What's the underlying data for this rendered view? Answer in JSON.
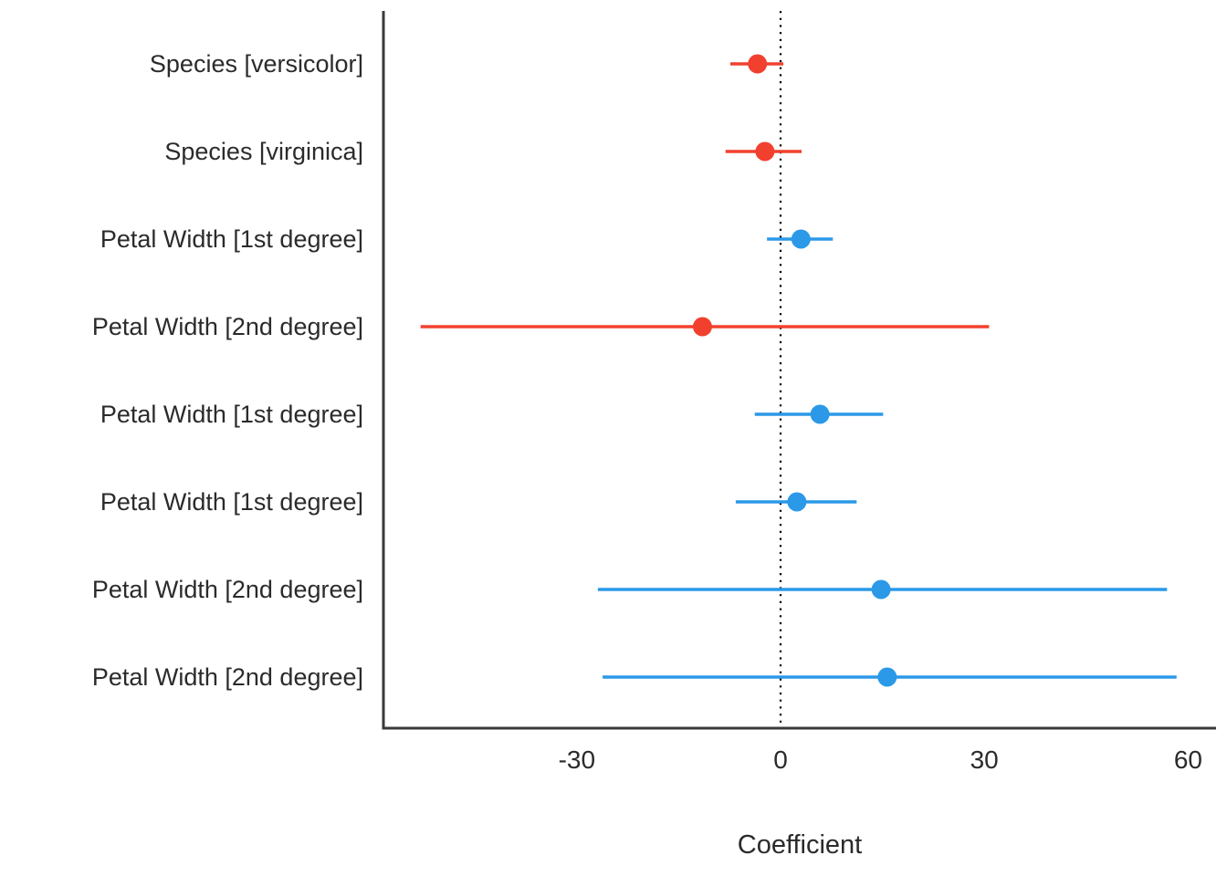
{
  "chart_data": {
    "type": "scatter",
    "subtype": "forest_coefficient_plot",
    "title": "",
    "xlabel": "Coefficient",
    "ylabel": "",
    "x_ticks": [
      -30,
      0,
      30,
      60
    ],
    "xlim": [
      -58,
      64
    ],
    "reference_line": 0,
    "grid": false,
    "legend": "none",
    "colors": {
      "red": "#f2402f",
      "blue": "#2b99e8",
      "axis": "#3a3a3a",
      "text": "#2b2b2b",
      "reference": "#000000"
    },
    "rows": [
      {
        "label": "Species [versicolor]",
        "estimate": -3.4,
        "ci_low": -7.4,
        "ci_high": 0.4,
        "color": "red"
      },
      {
        "label": "Species [virginica]",
        "estimate": -2.3,
        "ci_low": -8.1,
        "ci_high": 3.1,
        "color": "red"
      },
      {
        "label": "Petal Width [1st degree]",
        "estimate": 3.0,
        "ci_low": -2.0,
        "ci_high": 7.7,
        "color": "blue"
      },
      {
        "label": "Petal Width [2nd degree]",
        "estimate": -11.5,
        "ci_low": -53.0,
        "ci_high": 30.7,
        "color": "red"
      },
      {
        "label": "Petal Width [1st degree]",
        "estimate": 5.8,
        "ci_low": -3.8,
        "ci_high": 15.1,
        "color": "blue"
      },
      {
        "label": "Petal Width [1st degree]",
        "estimate": 2.4,
        "ci_low": -6.6,
        "ci_high": 11.2,
        "color": "blue"
      },
      {
        "label": "Petal Width [2nd degree]",
        "estimate": 14.8,
        "ci_low": -26.9,
        "ci_high": 56.9,
        "color": "blue"
      },
      {
        "label": "Petal Width [2nd degree]",
        "estimate": 15.7,
        "ci_low": -26.2,
        "ci_high": 58.3,
        "color": "blue"
      }
    ]
  }
}
